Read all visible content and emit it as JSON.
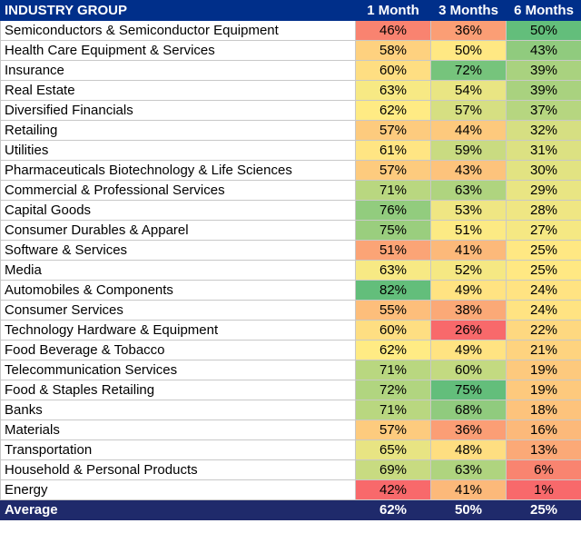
{
  "colors": {
    "header_bg": "#002f8a",
    "footer_bg": "#1f2a6b",
    "scale_low": "#f8696b",
    "scale_mid": "#ffeb84",
    "scale_high": "#63be7b"
  },
  "chart_data": {
    "type": "table",
    "columns": [
      "INDUSTRY GROUP",
      "1 Month",
      "3 Months",
      "6 Months"
    ],
    "rows": [
      {
        "name": "Semiconductors & Semiconductor Equipment",
        "values": [
          "46%",
          "36%",
          "50%"
        ]
      },
      {
        "name": "Health Care Equipment & Services",
        "values": [
          "58%",
          "50%",
          "43%"
        ]
      },
      {
        "name": "Insurance",
        "values": [
          "60%",
          "72%",
          "39%"
        ]
      },
      {
        "name": "Real Estate",
        "values": [
          "63%",
          "54%",
          "39%"
        ]
      },
      {
        "name": "Diversified Financials",
        "values": [
          "62%",
          "57%",
          "37%"
        ]
      },
      {
        "name": "Retailing",
        "values": [
          "57%",
          "44%",
          "32%"
        ]
      },
      {
        "name": "Utilities",
        "values": [
          "61%",
          "59%",
          "31%"
        ]
      },
      {
        "name": "Pharmaceuticals Biotechnology & Life Sciences",
        "values": [
          "57%",
          "43%",
          "30%"
        ]
      },
      {
        "name": "Commercial & Professional Services",
        "values": [
          "71%",
          "63%",
          "29%"
        ]
      },
      {
        "name": "Capital Goods",
        "values": [
          "76%",
          "53%",
          "28%"
        ]
      },
      {
        "name": "Consumer Durables & Apparel",
        "values": [
          "75%",
          "51%",
          "27%"
        ]
      },
      {
        "name": "Software & Services",
        "values": [
          "51%",
          "41%",
          "25%"
        ]
      },
      {
        "name": "Media",
        "values": [
          "63%",
          "52%",
          "25%"
        ]
      },
      {
        "name": "Automobiles & Components",
        "values": [
          "82%",
          "49%",
          "24%"
        ]
      },
      {
        "name": "Consumer Services",
        "values": [
          "55%",
          "38%",
          "24%"
        ]
      },
      {
        "name": "Technology Hardware & Equipment",
        "values": [
          "60%",
          "26%",
          "22%"
        ]
      },
      {
        "name": "Food Beverage & Tobacco",
        "values": [
          "62%",
          "49%",
          "21%"
        ]
      },
      {
        "name": "Telecommunication Services",
        "values": [
          "71%",
          "60%",
          "19%"
        ]
      },
      {
        "name": "Food & Staples Retailing",
        "values": [
          "72%",
          "75%",
          "19%"
        ]
      },
      {
        "name": "Banks",
        "values": [
          "71%",
          "68%",
          "18%"
        ]
      },
      {
        "name": "Materials",
        "values": [
          "57%",
          "36%",
          "16%"
        ]
      },
      {
        "name": "Transportation",
        "values": [
          "65%",
          "48%",
          "13%"
        ]
      },
      {
        "name": "Household & Personal Products",
        "values": [
          "69%",
          "63%",
          "6%"
        ]
      },
      {
        "name": "Energy",
        "values": [
          "42%",
          "41%",
          "1%"
        ]
      }
    ],
    "average": {
      "name": "Average",
      "values": [
        "62%",
        "50%",
        "25%"
      ]
    }
  }
}
